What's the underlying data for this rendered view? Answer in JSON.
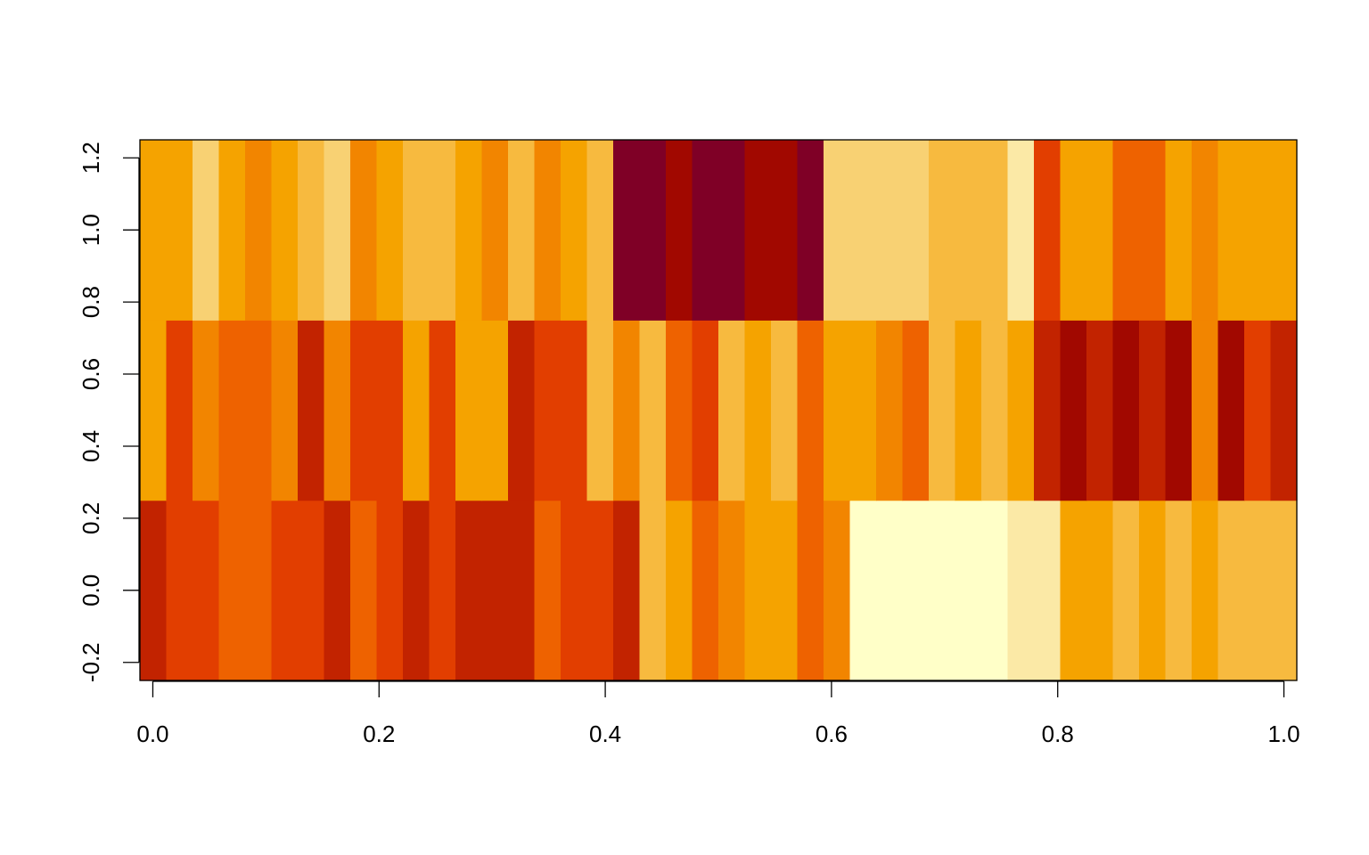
{
  "chart_data": {
    "type": "heatmap",
    "title": "",
    "xlabel": "",
    "ylabel": "",
    "xlim": [
      -0.0114,
      1.0114
    ],
    "ylim": [
      -0.25,
      1.25
    ],
    "grid": false,
    "legend": "none",
    "x_ticks": [
      {
        "value": 0.0,
        "label": "0.0"
      },
      {
        "value": 0.2,
        "label": "0.2"
      },
      {
        "value": 0.4,
        "label": "0.4"
      },
      {
        "value": 0.6,
        "label": "0.6"
      },
      {
        "value": 0.8,
        "label": "0.8"
      },
      {
        "value": 1.0,
        "label": "1.0"
      }
    ],
    "y_ticks": [
      {
        "value": -0.2,
        "label": "-0.2"
      },
      {
        "value": 0.0,
        "label": "0.0"
      },
      {
        "value": 0.2,
        "label": "0.2"
      },
      {
        "value": 0.4,
        "label": "0.4"
      },
      {
        "value": 0.6,
        "label": "0.6"
      },
      {
        "value": 0.8,
        "label": "0.8"
      },
      {
        "value": 1.0,
        "label": "1.0"
      },
      {
        "value": 1.2,
        "label": "1.2"
      }
    ],
    "color_scale": [
      "#7F0026",
      "#A10800",
      "#C22300",
      "#E23E00",
      "#EE6200",
      "#F28500",
      "#F5A300",
      "#F7BA3F",
      "#F8D173",
      "#FBE9A6",
      "#FFFFC4",
      "#FFFFC8"
    ],
    "rows": [
      {
        "y_center": 0.0,
        "cells": [
          2,
          3,
          3,
          4,
          4,
          3,
          3,
          2,
          4,
          3,
          2,
          3,
          2,
          2,
          2,
          4,
          3,
          3,
          2,
          7,
          6,
          4,
          5,
          6,
          6,
          4,
          5,
          11,
          11,
          11,
          11,
          11,
          11,
          9,
          9,
          6,
          6,
          7,
          6,
          7,
          6,
          7,
          7,
          7
        ]
      },
      {
        "y_center": 0.5,
        "cells": [
          6,
          3,
          5,
          4,
          4,
          5,
          2,
          5,
          3,
          3,
          6,
          3,
          6,
          6,
          2,
          3,
          3,
          7,
          5,
          7,
          4,
          3,
          7,
          6,
          7,
          4,
          6,
          6,
          5,
          4,
          7,
          6,
          7,
          6,
          2,
          1,
          2,
          1,
          2,
          1,
          5,
          1,
          3,
          2
        ]
      },
      {
        "y_center": 1.0,
        "cells": [
          6,
          6,
          8,
          6,
          5,
          6,
          7,
          8,
          5,
          6,
          7,
          7,
          6,
          5,
          7,
          5,
          6,
          7,
          0,
          0,
          1,
          0,
          0,
          1,
          1,
          0,
          8,
          8,
          8,
          8,
          7,
          7,
          7,
          9,
          3,
          6,
          6,
          4,
          4,
          6,
          5,
          6,
          6,
          6
        ]
      }
    ]
  }
}
